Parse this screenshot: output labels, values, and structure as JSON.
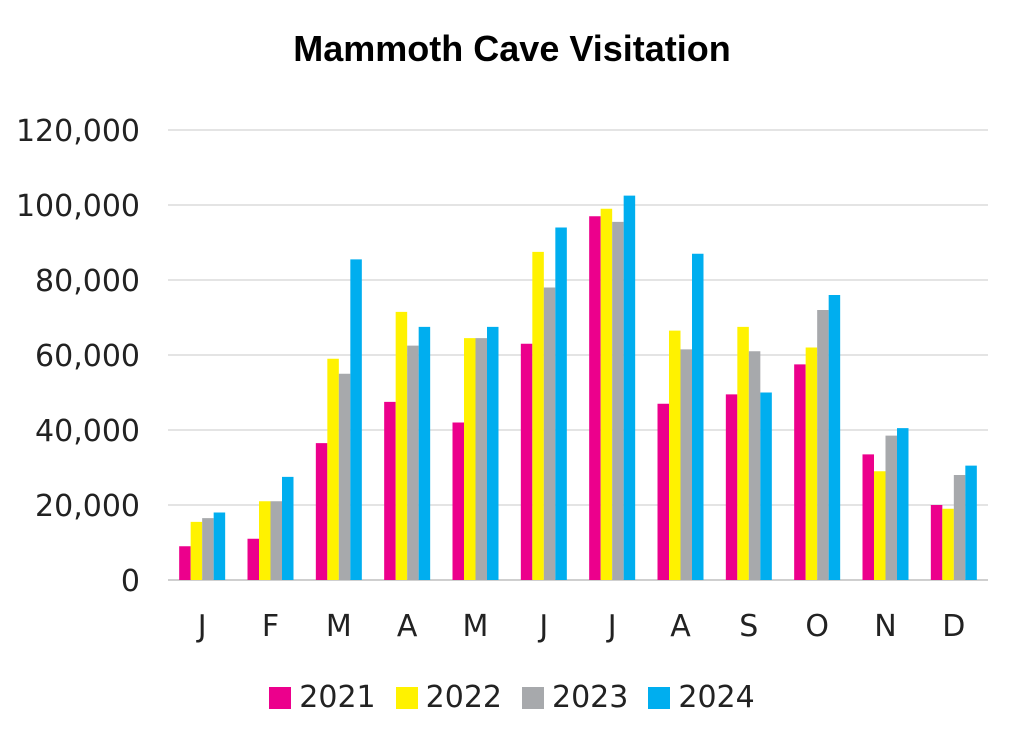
{
  "chart_data": {
    "type": "bar",
    "title": "Mammoth Cave Visitation",
    "xlabel": "",
    "ylabel": "",
    "ylim": [
      0,
      120000
    ],
    "yticks": [
      "0",
      "20,000",
      "40,000",
      "60,000",
      "80,000",
      "100,000",
      "120,000"
    ],
    "ytick_values": [
      0,
      20000,
      40000,
      60000,
      80000,
      100000,
      120000
    ],
    "grid": true,
    "legend_position": "bottom",
    "categories": [
      "J",
      "F",
      "M",
      "A",
      "M",
      "J",
      "J",
      "A",
      "S",
      "O",
      "N",
      "D"
    ],
    "series": [
      {
        "name": "2021",
        "color": "#EC008C",
        "values": [
          9000,
          11000,
          36500,
          47500,
          42000,
          63000,
          97000,
          47000,
          49500,
          57500,
          33500,
          20000
        ]
      },
      {
        "name": "2022",
        "color": "#FFF200",
        "values": [
          15500,
          21000,
          59000,
          71500,
          64500,
          87500,
          99000,
          66500,
          67500,
          62000,
          29000,
          19000
        ]
      },
      {
        "name": "2023",
        "color": "#A7A9AC",
        "values": [
          16500,
          21000,
          55000,
          62500,
          64500,
          78000,
          95500,
          61500,
          61000,
          72000,
          38500,
          28000
        ]
      },
      {
        "name": "2024",
        "color": "#00AEEF",
        "values": [
          18000,
          27500,
          85500,
          67500,
          67500,
          94000,
          102500,
          87000,
          50000,
          76000,
          40500,
          30500
        ]
      }
    ]
  }
}
